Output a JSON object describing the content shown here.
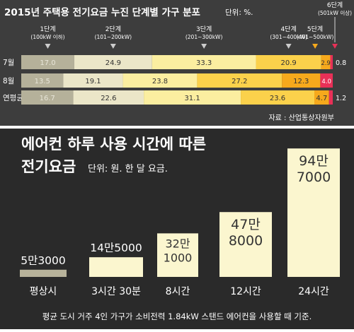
{
  "chart_data": [
    {
      "type": "bar",
      "stacked": true,
      "orientation": "horizontal",
      "title": "2015년 주택용 전기요금 누진 단계별 가구 분포",
      "unit_label": "단위: %.",
      "categories": [
        "7월",
        "8월",
        "연평균"
      ],
      "series": [
        {
          "name": "1단계",
          "sub": "(100kW 이하)",
          "color": "#b5b19a",
          "values": [
            17.0,
            13.5,
            16.7
          ]
        },
        {
          "name": "2단계",
          "sub": "(101~200kW)",
          "color": "#ebe6c8",
          "values": [
            24.9,
            19.1,
            22.6
          ]
        },
        {
          "name": "3단계",
          "sub": "(201~300kW)",
          "color": "#fbeea0",
          "values": [
            33.3,
            23.8,
            31.1
          ]
        },
        {
          "name": "4단계",
          "sub": "(301~400kW)",
          "color": "#fbd14b",
          "values": [
            20.9,
            27.2,
            23.6
          ]
        },
        {
          "name": "5단계",
          "sub": "(401~500kW)",
          "color": "#f6a91c",
          "values": [
            2.9,
            12.3,
            4.7
          ]
        },
        {
          "name": "6단계",
          "sub": "(501kW 이상)",
          "color": "#e83057",
          "values": [
            0.8,
            4.0,
            1.2
          ]
        }
      ],
      "value_labels": [
        [
          "17.0",
          "24.9",
          "33.3",
          "20.9",
          "2.9",
          "0.8"
        ],
        [
          "13.5",
          "19.1",
          "23.8",
          "27.2",
          "12.3",
          "4.0"
        ],
        [
          "16.7",
          "22.6",
          "31.1",
          "23.6",
          "4.7",
          "1.2"
        ]
      ],
      "source": "자료 : 산업통상자원부"
    },
    {
      "type": "bar",
      "title": "에어컨 하루 사용 시간에 따른",
      "subtitle": "전기요금",
      "unit_label": "단위: 원. 한 달 요금.",
      "categories": [
        "평상시",
        "3시간 30분",
        "8시간",
        "12시간",
        "24시간"
      ],
      "values": [
        53000,
        145000,
        321000,
        478000,
        947000
      ],
      "value_labels": [
        [
          "5만3000"
        ],
        [
          "14만5000"
        ],
        [
          "32만",
          "1000"
        ],
        [
          "47만",
          "8000"
        ],
        [
          "94만",
          "7000"
        ]
      ],
      "footnote": "평균 도시 거주 4인 가구가 소비전력 1.84kW 스탠드 에어컨을 사용할 때 기준."
    }
  ],
  "colors": {
    "top_background": "#3a3a3a",
    "bottom_background": "#2b2b2b",
    "top_text": "#ffffff",
    "bar_fill_bottom": "#fbf5c8",
    "value_text_dark": "#333333",
    "axis_text_bottom": "#ffffff"
  }
}
